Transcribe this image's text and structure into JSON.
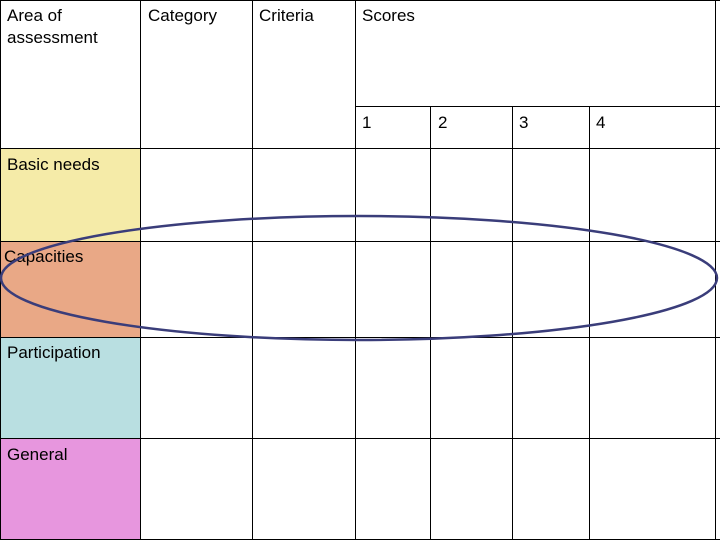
{
  "header": {
    "area": "Area of\nassessment",
    "category": "Category",
    "criteria": "Criteria",
    "scores": "Scores",
    "score_levels": [
      "1",
      "2",
      "3",
      "4"
    ]
  },
  "rows": [
    {
      "label": "Basic needs",
      "color": "#f5eba8"
    },
    {
      "label": "Capacities",
      "color": "#e9a886"
    },
    {
      "label": "Participation",
      "color": "#b9dfe1"
    },
    {
      "label": "General",
      "color": "#e796de"
    }
  ],
  "highlight": {
    "color": "#3a3d7a"
  }
}
